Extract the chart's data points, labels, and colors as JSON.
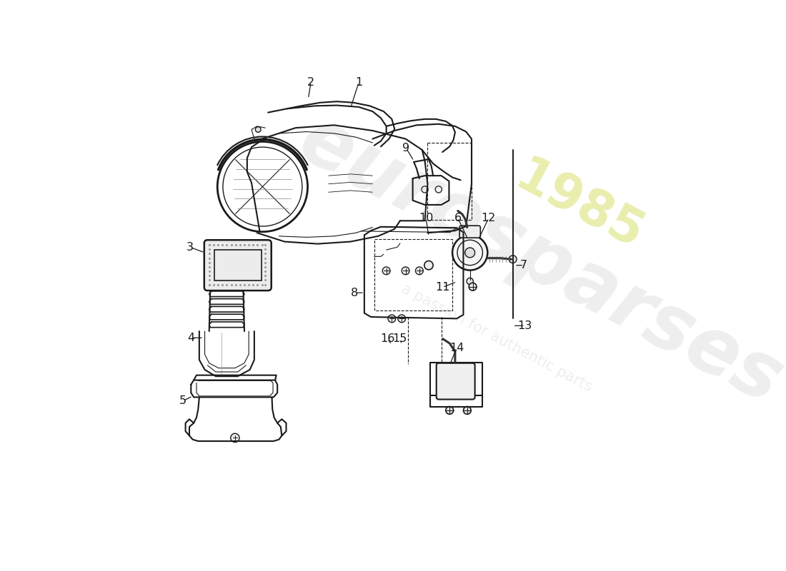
{
  "bg": "#ffffff",
  "lc": "#1a1a1a",
  "wm_gray": "#d4d4d4",
  "wm_yellow": "#ccd840",
  "wm_alpha": 0.38,
  "fs_label": 11.5,
  "lw_main": 1.5,
  "lw_thin": 0.8,
  "lw_thick": 2.2
}
